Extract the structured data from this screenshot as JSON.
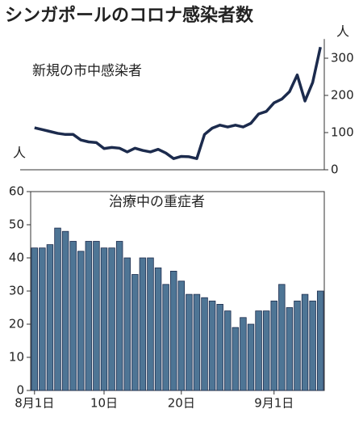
{
  "title": "シンガポールのコロナ感染者数",
  "chart_data": [
    {
      "type": "line",
      "title": "新規の市中感染者",
      "unit": "人",
      "color": "#1c2b4d",
      "categories": [
        "8月1日",
        null,
        null,
        null,
        null,
        null,
        null,
        null,
        null,
        "10日",
        null,
        null,
        null,
        null,
        null,
        null,
        null,
        null,
        null,
        "20日",
        null,
        null,
        null,
        null,
        null,
        null,
        null,
        null,
        null,
        null,
        null,
        "9月1日",
        null,
        null,
        null,
        null,
        null,
        null
      ],
      "values": [
        113,
        108,
        103,
        98,
        95,
        95,
        80,
        75,
        73,
        57,
        60,
        58,
        48,
        58,
        52,
        48,
        55,
        45,
        30,
        36,
        35,
        30,
        95,
        112,
        120,
        115,
        120,
        115,
        125,
        150,
        157,
        180,
        190,
        210,
        255,
        185,
        235,
        330
      ],
      "ylim": [
        0,
        330
      ],
      "yticks": [
        0,
        100,
        200,
        300
      ],
      "axis_side": "right"
    },
    {
      "type": "bar",
      "title": "治療中の重症者",
      "unit": "人",
      "color": "#4e7595",
      "categories": [
        "8月1日",
        null,
        null,
        null,
        null,
        null,
        null,
        null,
        null,
        "10日",
        null,
        null,
        null,
        null,
        null,
        null,
        null,
        null,
        null,
        "20日",
        null,
        null,
        null,
        null,
        null,
        null,
        null,
        null,
        null,
        null,
        null,
        "9月1日",
        null,
        null,
        null,
        null,
        null,
        null
      ],
      "values": [
        43,
        43,
        44,
        49,
        48,
        45,
        42,
        45,
        45,
        43,
        43,
        45,
        40,
        35,
        40,
        40,
        37,
        32,
        36,
        33,
        29,
        29,
        28,
        27,
        26,
        24,
        19,
        22,
        20,
        24,
        24,
        27,
        32,
        25,
        27,
        29,
        27,
        30
      ],
      "ylim": [
        0,
        60
      ],
      "yticks": [
        0,
        10,
        20,
        30,
        40,
        50,
        60
      ],
      "axis_side": "left"
    }
  ]
}
